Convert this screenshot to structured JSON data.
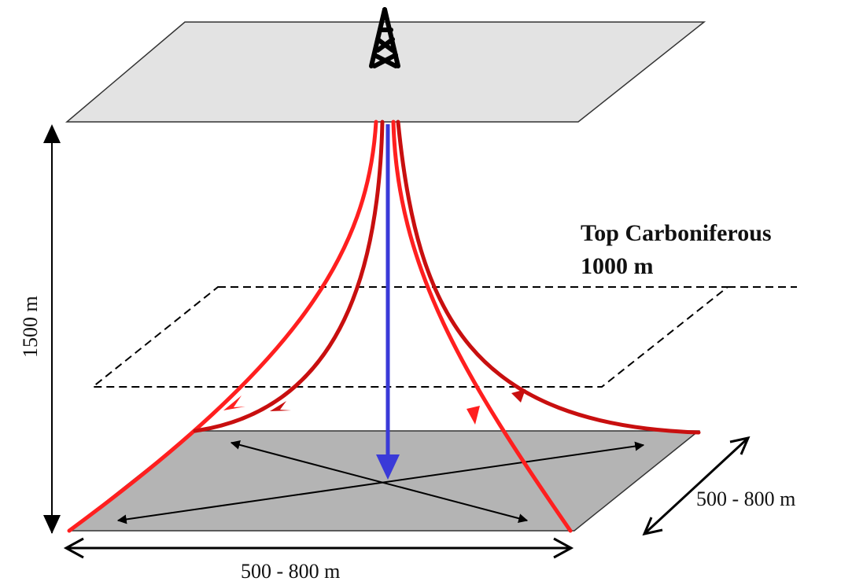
{
  "labels": {
    "horizon_name": "Top Carboniferous",
    "horizon_depth": "1000 m",
    "depth": "1500 m",
    "width_front": "500 - 800 m",
    "width_side": "500 - 800 m"
  },
  "colors": {
    "surface_plane": "#e3e3e3",
    "reservoir_plane": "#b4b4b4",
    "well_bright": "#ff1f1f",
    "well_dark": "#c80f0f",
    "vertical_well": "#3a3ad8",
    "dimension_arrows": "#000000"
  },
  "icons": {
    "drilling_rig": "drilling-rig-icon"
  }
}
